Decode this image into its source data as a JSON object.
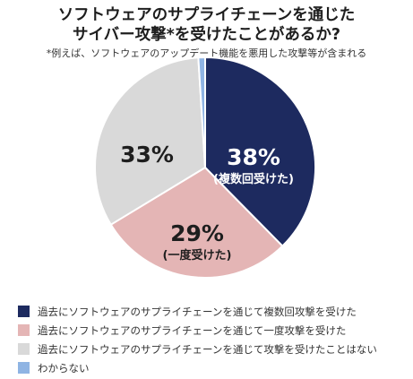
{
  "title_lines": [
    "ソフトウェアのサプライチェーンを通じた",
    "サイバー攻撃*を受けたことがあるか?"
  ],
  "subtitle": "*例えば、ソフトウェアのアップデート機能を悪用した攻撃等が含まれる",
  "chart_data": {
    "type": "pie",
    "slices": [
      {
        "label": "過去にソフトウェアのサプライチェーンを通じて複数回攻撃を受けた",
        "value": 38,
        "display": "38%",
        "sublabel": "(複数回受けた)",
        "color": "#1d2a5f",
        "text_color": "#ffffff"
      },
      {
        "label": "過去にソフトウェアのサプライチェーンを通じて一度攻撃を受けた",
        "value": 29,
        "display": "29%",
        "sublabel": "(一度受けた)",
        "color": "#e4b5b5",
        "text_color": "#1e1e1e"
      },
      {
        "label": "過去にソフトウェアのサプライチェーンを通じて攻撃を受けたことはない",
        "value": 33,
        "display": "33%",
        "sublabel": "",
        "color": "#d9d9d9",
        "text_color": "#1e1e1e"
      },
      {
        "label": "わからない",
        "value": 1,
        "display": "",
        "sublabel": "",
        "color": "#8fb4e3",
        "text_color": "#1e1e1e"
      }
    ],
    "legend_position": "bottom-left"
  }
}
